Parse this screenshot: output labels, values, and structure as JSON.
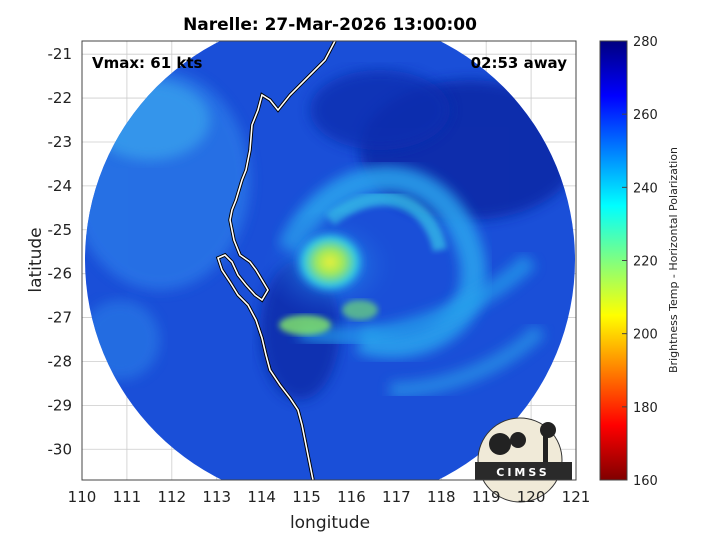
{
  "figure": {
    "title": "Narelle: 27-Mar-2026 13:00:00",
    "vmax_label": "Vmax: 61 kts",
    "time_away": "02:53 away",
    "xlabel": "longitude",
    "ylabel": "latitude",
    "colorbar_label": "Brightness Temp - Horizontal Polarization",
    "logo_text": "CIMSS"
  },
  "chart_data": {
    "type": "heatmap",
    "title": "Narelle: 27-Mar-2026 13:00:00",
    "xlabel": "longitude",
    "ylabel": "latitude",
    "xlim": [
      110,
      121
    ],
    "ylim": [
      -30.7,
      -20.7
    ],
    "xticks": [
      "110",
      "111",
      "112",
      "113",
      "114",
      "115",
      "116",
      "117",
      "118",
      "119",
      "120",
      "121"
    ],
    "yticks": [
      "-21",
      "-22",
      "-23",
      "-24",
      "-25",
      "-26",
      "-27",
      "-28",
      "-29",
      "-30"
    ],
    "grid": true,
    "colorbar": {
      "min": 160,
      "max": 280,
      "ticks": [
        "160",
        "180",
        "200",
        "220",
        "240",
        "260",
        "280"
      ],
      "label": "Brightness Temp - Horizontal Polarization",
      "colors": [
        "#800000",
        "#ff0000",
        "#ff8000",
        "#ffff00",
        "#80ff80",
        "#00ffff",
        "#0080ff",
        "#0000ff",
        "#000080"
      ]
    },
    "storm_center": {
      "lon": 115.6,
      "lat": -25.9
    },
    "colors": {
      "background": "#1a4fd8",
      "cold_core": "#c8ef2a",
      "warm_ring": "#20b8f0",
      "dark_band": "#0a1f9a",
      "coastline": "#ffffff"
    }
  }
}
